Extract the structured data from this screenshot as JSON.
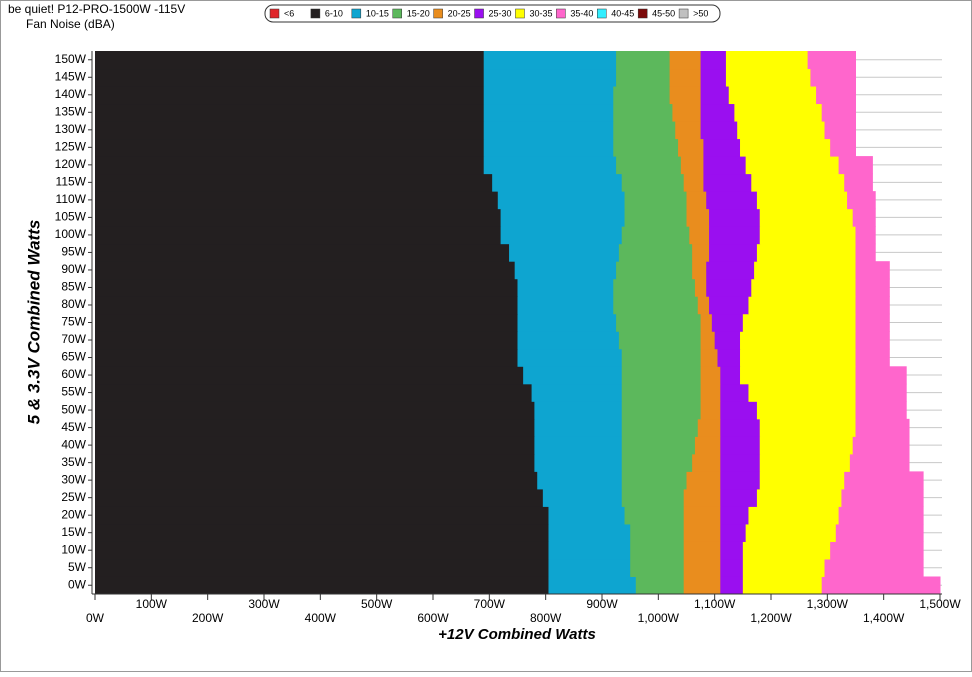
{
  "chart_data": {
    "type": "heatmap",
    "title": "be quiet! P12-PRO-1500W -115V",
    "subtitle": "Fan Noise (dBA)",
    "x_label": "+12V Combined Watts",
    "y_label": "5 & 3.3V Combined Watts",
    "xlim": [
      0,
      1500
    ],
    "ylim": [
      -2.5,
      152.5
    ],
    "grid": true,
    "legend": "top",
    "xticks": [
      {
        "value": 0,
        "label": "0W"
      },
      {
        "value": 100,
        "label": "100W"
      },
      {
        "value": 200,
        "label": "200W"
      },
      {
        "value": 300,
        "label": "300W"
      },
      {
        "value": 400,
        "label": "400W"
      },
      {
        "value": 500,
        "label": "500W"
      },
      {
        "value": 600,
        "label": "600W"
      },
      {
        "value": 700,
        "label": "700W"
      },
      {
        "value": 800,
        "label": "800W"
      },
      {
        "value": 900,
        "label": "900W"
      },
      {
        "value": 1000,
        "label": "1,000W"
      },
      {
        "value": 1100,
        "label": "1,100W"
      },
      {
        "value": 1200,
        "label": "1,200W"
      },
      {
        "value": 1300,
        "label": "1,300W"
      },
      {
        "value": 1400,
        "label": "1,400W"
      },
      {
        "value": 1500,
        "label": "1,500W"
      }
    ],
    "yticks": [
      {
        "value": 0,
        "label": "0W"
      },
      {
        "value": 5,
        "label": "5W"
      },
      {
        "value": 10,
        "label": "10W"
      },
      {
        "value": 15,
        "label": "15W"
      },
      {
        "value": 20,
        "label": "20W"
      },
      {
        "value": 25,
        "label": "25W"
      },
      {
        "value": 30,
        "label": "30W"
      },
      {
        "value": 35,
        "label": "35W"
      },
      {
        "value": 40,
        "label": "40W"
      },
      {
        "value": 45,
        "label": "45W"
      },
      {
        "value": 50,
        "label": "50W"
      },
      {
        "value": 55,
        "label": "55W"
      },
      {
        "value": 60,
        "label": "60W"
      },
      {
        "value": 65,
        "label": "65W"
      },
      {
        "value": 70,
        "label": "70W"
      },
      {
        "value": 75,
        "label": "75W"
      },
      {
        "value": 80,
        "label": "80W"
      },
      {
        "value": 85,
        "label": "85W"
      },
      {
        "value": 90,
        "label": "90W"
      },
      {
        "value": 95,
        "label": "95W"
      },
      {
        "value": 100,
        "label": "100W"
      },
      {
        "value": 105,
        "label": "105W"
      },
      {
        "value": 110,
        "label": "110W"
      },
      {
        "value": 115,
        "label": "115W"
      },
      {
        "value": 120,
        "label": "120W"
      },
      {
        "value": 125,
        "label": "125W"
      },
      {
        "value": 130,
        "label": "130W"
      },
      {
        "value": 135,
        "label": "135W"
      },
      {
        "value": 140,
        "label": "140W"
      },
      {
        "value": 145,
        "label": "145W"
      },
      {
        "value": 150,
        "label": "150W"
      }
    ],
    "y": [
      0,
      5,
      10,
      15,
      20,
      25,
      30,
      35,
      40,
      45,
      50,
      55,
      60,
      65,
      70,
      75,
      80,
      85,
      90,
      95,
      100,
      105,
      110,
      115,
      120,
      125,
      130,
      135,
      140,
      145,
      150
    ],
    "series": [
      {
        "name": "<6",
        "color": "#e0262b"
      },
      {
        "name": "6-10",
        "color": "#231f20",
        "x_end": [
          805,
          805,
          805,
          805,
          805,
          795,
          785,
          780,
          780,
          780,
          780,
          775,
          760,
          750,
          750,
          750,
          750,
          750,
          745,
          735,
          720,
          720,
          715,
          705,
          690,
          690,
          690,
          690,
          690,
          690,
          690
        ]
      },
      {
        "name": "10-15",
        "color": "#0ea5d0",
        "x_end": [
          960,
          950,
          950,
          950,
          940,
          935,
          935,
          935,
          935,
          935,
          935,
          935,
          935,
          935,
          930,
          925,
          920,
          920,
          925,
          930,
          935,
          940,
          940,
          935,
          925,
          920,
          920,
          920,
          920,
          925,
          925
        ]
      },
      {
        "name": "15-20",
        "color": "#5cb85c",
        "x_end": [
          1045,
          1045,
          1045,
          1045,
          1045,
          1045,
          1050,
          1060,
          1065,
          1070,
          1075,
          1075,
          1075,
          1075,
          1075,
          1075,
          1070,
          1065,
          1060,
          1060,
          1055,
          1050,
          1050,
          1045,
          1040,
          1035,
          1030,
          1025,
          1020,
          1020,
          1020
        ]
      },
      {
        "name": "20-25",
        "color": "#e98d1e",
        "x_end": [
          1110,
          1110,
          1110,
          1110,
          1110,
          1110,
          1110,
          1110,
          1110,
          1110,
          1110,
          1110,
          1110,
          1105,
          1100,
          1095,
          1090,
          1085,
          1085,
          1090,
          1090,
          1090,
          1085,
          1080,
          1080,
          1080,
          1075,
          1075,
          1075,
          1075,
          1075
        ]
      },
      {
        "name": "25-30",
        "color": "#9a0ff0",
        "x_end": [
          1150,
          1150,
          1150,
          1155,
          1160,
          1175,
          1180,
          1180,
          1180,
          1180,
          1175,
          1160,
          1145,
          1145,
          1145,
          1150,
          1160,
          1165,
          1170,
          1175,
          1180,
          1180,
          1175,
          1165,
          1155,
          1145,
          1140,
          1135,
          1125,
          1120,
          1120
        ]
      },
      {
        "name": "30-35",
        "color": "#ffff00",
        "x_end": [
          1290,
          1295,
          1305,
          1315,
          1320,
          1325,
          1330,
          1340,
          1345,
          1350,
          1350,
          1350,
          1350,
          1350,
          1350,
          1350,
          1350,
          1350,
          1350,
          1350,
          1350,
          1345,
          1335,
          1330,
          1320,
          1305,
          1295,
          1290,
          1280,
          1270,
          1265
        ]
      },
      {
        "name": "35-40",
        "color": "#ff66cc",
        "x_end": [
          1500,
          1470,
          1470,
          1470,
          1470,
          1470,
          1470,
          1445,
          1445,
          1445,
          1440,
          1440,
          1440,
          1410,
          1410,
          1410,
          1410,
          1410,
          1410,
          1385,
          1385,
          1385,
          1385,
          1380,
          1380,
          1350,
          1350,
          1350,
          1350,
          1350,
          1350
        ]
      },
      {
        "name": "40-45",
        "color": "#33eeff"
      },
      {
        "name": "45-50",
        "color": "#7b0a0a"
      },
      {
        "name": ">50",
        "color": "#c0c0c0"
      }
    ]
  }
}
